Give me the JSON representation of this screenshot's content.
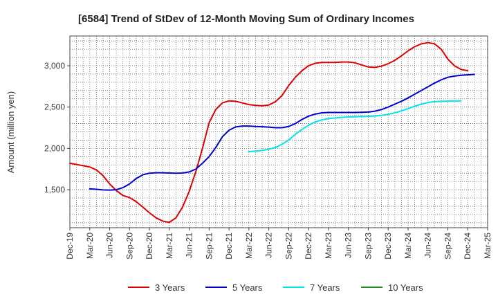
{
  "chart_data": {
    "type": "line",
    "title": "[6584]  Trend of StDev of 12-Month Moving Sum of Ordinary Incomes",
    "xlabel": "",
    "ylabel": "Amount (million yen)",
    "ylim": [
      1040,
      3360
    ],
    "yticks": [
      1500,
      2000,
      2500,
      3000
    ],
    "ytick_labels": [
      "1,500",
      "2,000",
      "2,500",
      "3,000"
    ],
    "x_categories": [
      "Dec-19",
      "Mar-20",
      "Jun-20",
      "Sep-20",
      "Dec-20",
      "Mar-21",
      "Jun-21",
      "Sep-21",
      "Dec-21",
      "Mar-22",
      "Jun-22",
      "Sep-22",
      "Dec-22",
      "Mar-23",
      "Jun-23",
      "Sep-23",
      "Dec-23",
      "Mar-24",
      "Jun-24",
      "Sep-24",
      "Dec-24",
      "Mar-25"
    ],
    "grid": true,
    "series": [
      {
        "name": "3 Years",
        "color": "#e00000",
        "start_index": 0,
        "values": [
          1820,
          1805,
          1790,
          1775,
          1740,
          1670,
          1570,
          1490,
          1430,
          1405,
          1355,
          1290,
          1220,
          1160,
          1120,
          1105,
          1160,
          1290,
          1480,
          1720,
          2000,
          2310,
          2470,
          2550,
          2575,
          2570,
          2550,
          2530,
          2520,
          2515,
          2525,
          2565,
          2640,
          2760,
          2860,
          2940,
          3000,
          3030,
          3040,
          3040,
          3040,
          3045,
          3045,
          3035,
          3010,
          2985,
          2980,
          2995,
          3025,
          3065,
          3120,
          3180,
          3230,
          3265,
          3280,
          3265,
          3200,
          3080,
          3000,
          2955,
          2940
        ]
      },
      {
        "name": "5 Years",
        "color": "#0000cc",
        "start_index": 3,
        "values": [
          1510,
          1505,
          1498,
          1495,
          1500,
          1525,
          1570,
          1635,
          1680,
          1700,
          1705,
          1705,
          1702,
          1700,
          1702,
          1715,
          1750,
          1820,
          1900,
          2010,
          2140,
          2220,
          2260,
          2270,
          2270,
          2265,
          2262,
          2258,
          2250,
          2250,
          2265,
          2300,
          2350,
          2390,
          2415,
          2430,
          2435,
          2435,
          2435,
          2435,
          2435,
          2437,
          2440,
          2450,
          2470,
          2500,
          2535,
          2570,
          2610,
          2655,
          2700,
          2745,
          2790,
          2830,
          2860,
          2875,
          2885,
          2890,
          2895
        ]
      },
      {
        "name": "7 Years",
        "color": "#00e5e5",
        "start_index": 27,
        "values": [
          1960,
          1968,
          1975,
          1990,
          2010,
          2050,
          2100,
          2170,
          2230,
          2280,
          2320,
          2345,
          2360,
          2368,
          2375,
          2380,
          2382,
          2385,
          2387,
          2392,
          2400,
          2412,
          2430,
          2455,
          2480,
          2510,
          2535,
          2555,
          2565,
          2570,
          2572,
          2574,
          2575
        ]
      },
      {
        "name": "10 Years",
        "color": "#228b22",
        "start_index": 0,
        "values": []
      }
    ]
  }
}
